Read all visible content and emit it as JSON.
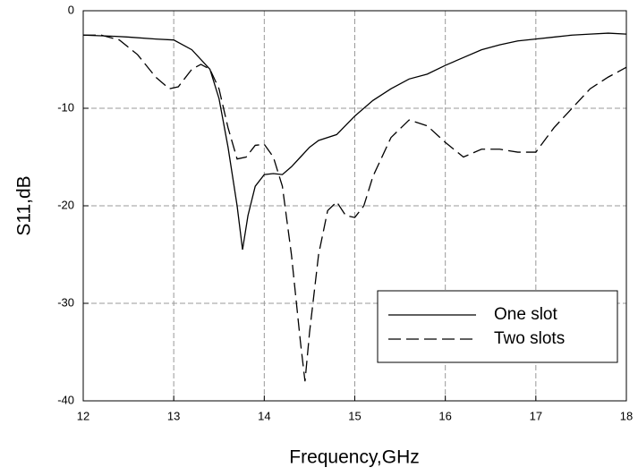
{
  "chart_data": {
    "type": "line",
    "x_label": "Frequency,GHz",
    "y_label": "S11,dB",
    "xlim": [
      12,
      18
    ],
    "xticks": [
      12,
      13,
      14,
      15,
      16,
      17,
      18
    ],
    "ylim": [
      -40,
      0
    ],
    "yticks": [
      -40,
      -30,
      -20,
      -10,
      0
    ],
    "grid": true,
    "legend": "lower right",
    "series": [
      {
        "name": "One slot",
        "color": "#000000",
        "style": "solid",
        "x": [
          12,
          12.3,
          12.5,
          12.8,
          13,
          13.2,
          13.4,
          13.5,
          13.6,
          13.7,
          13.76,
          13.82,
          13.9,
          14.0,
          14.1,
          14.2,
          14.3,
          14.4,
          14.5,
          14.6,
          14.8,
          15.0,
          15.2,
          15.4,
          15.6,
          15.8,
          16,
          16.2,
          16.4,
          16.6,
          16.8,
          17,
          17.2,
          17.4,
          17.6,
          17.8,
          18
        ],
        "values": [
          -2.5,
          -2.6,
          -2.7,
          -2.9,
          -3.0,
          -4,
          -6,
          -9,
          -14,
          -20,
          -24.5,
          -21,
          -18,
          -16.8,
          -16.7,
          -16.8,
          -16,
          -15,
          -14,
          -13.3,
          -12.7,
          -10.8,
          -9.2,
          -8,
          -7,
          -6.5,
          -5.6,
          -4.8,
          -4.0,
          -3.5,
          -3.1,
          -2.9,
          -2.7,
          -2.5,
          -2.4,
          -2.3,
          -2.4
        ]
      },
      {
        "name": "Two slots",
        "color": "#000000",
        "style": "dashed",
        "x": [
          12,
          12.2,
          12.4,
          12.6,
          12.8,
          12.95,
          13.05,
          13.2,
          13.3,
          13.4,
          13.5,
          13.6,
          13.7,
          13.8,
          13.9,
          14.0,
          14.1,
          14.2,
          14.3,
          14.4,
          14.45,
          14.5,
          14.6,
          14.7,
          14.8,
          14.9,
          15.0,
          15.1,
          15.2,
          15.4,
          15.6,
          15.8,
          16.0,
          16.2,
          16.4,
          16.6,
          16.8,
          17.0,
          17.2,
          17.4,
          17.6,
          17.8,
          18
        ],
        "values": [
          -2.5,
          -2.5,
          -3.0,
          -4.5,
          -6.8,
          -8.0,
          -7.8,
          -6,
          -5.5,
          -6,
          -8,
          -12,
          -15.2,
          -15,
          -13.8,
          -13.7,
          -15,
          -18,
          -25,
          -34,
          -38,
          -33,
          -25,
          -20.5,
          -19.6,
          -21,
          -21.2,
          -20,
          -17,
          -13,
          -11.2,
          -11.8,
          -13.5,
          -15.0,
          -14.2,
          -14.2,
          -14.5,
          -14.5,
          -12,
          -10,
          -8,
          -6.8,
          -5.8
        ]
      }
    ]
  }
}
